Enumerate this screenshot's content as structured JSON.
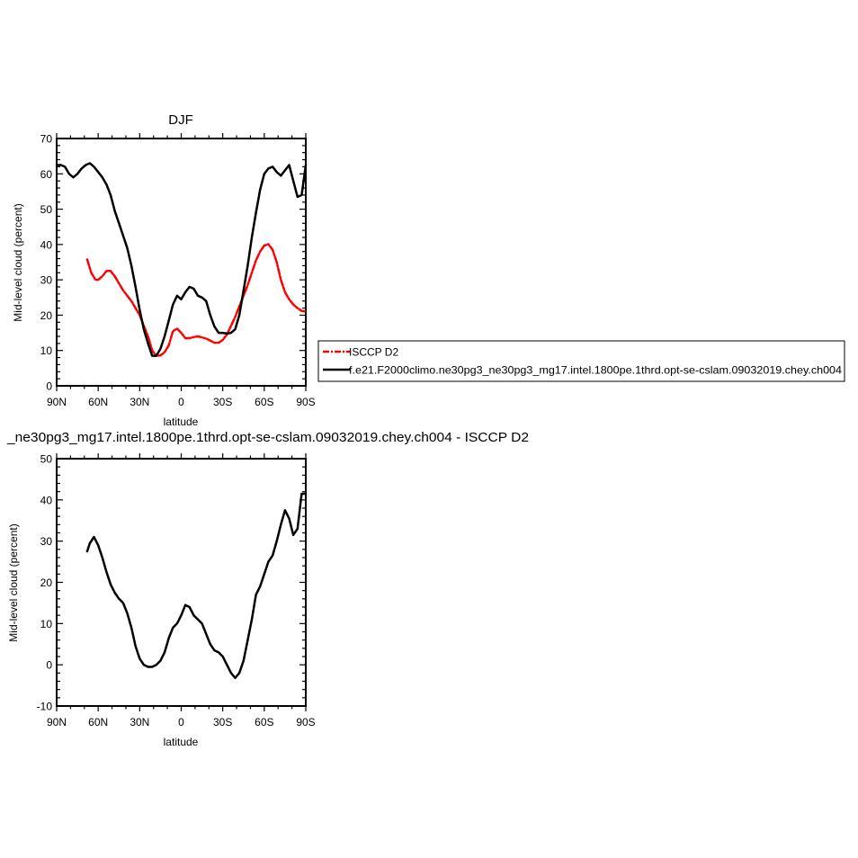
{
  "chart_data": [
    {
      "type": "line",
      "title": "DJF",
      "xlabel": "latitude",
      "ylabel": "Mid-level cloud (percent)",
      "xlim": [
        -90,
        90
      ],
      "ylim": [
        0,
        70
      ],
      "x_ticks": [
        -90,
        -60,
        -30,
        0,
        30,
        60,
        90
      ],
      "x_tick_labels": [
        "90N",
        "60N",
        "30N",
        "0",
        "30S",
        "60S",
        "90S"
      ],
      "y_ticks": [
        0,
        10,
        20,
        30,
        40,
        50,
        60,
        70
      ],
      "y_tick_labels": [
        "0",
        "10",
        "20",
        "30",
        "40",
        "50",
        "60",
        "70"
      ],
      "legend_position": "right, outside plot",
      "series": [
        {
          "name": "ISCCP D2",
          "color": "#ff0000",
          "style": "dashed",
          "x": [
            -68,
            -65,
            -62,
            -60,
            -57,
            -54,
            -51,
            -48,
            -45,
            -42,
            -39,
            -36,
            -33,
            -30,
            -27,
            -24,
            -21,
            -18,
            -15,
            -12,
            -9,
            -6,
            -3,
            0,
            3,
            6,
            9,
            12,
            15,
            18,
            21,
            24,
            27,
            30,
            33,
            36,
            39,
            42,
            45,
            48,
            51,
            54,
            57,
            60,
            63,
            66,
            69,
            72,
            75,
            78,
            81,
            84,
            87,
            90
          ],
          "y": [
            35.8,
            32,
            30,
            30,
            31,
            32.5,
            32.5,
            31,
            29,
            27,
            25.5,
            24,
            22,
            20,
            17,
            14,
            10,
            8.5,
            8.6,
            9.5,
            11.5,
            15.5,
            16.2,
            15,
            13.5,
            13.5,
            13.8,
            14,
            13.7,
            13.4,
            12.8,
            12.2,
            12.2,
            13,
            14.5,
            17,
            19.5,
            22.5,
            25.5,
            28.5,
            32,
            35.5,
            38,
            39.7,
            40.1,
            38.5,
            35,
            30,
            26.5,
            24.5,
            23,
            22,
            21.2,
            21
          ]
        },
        {
          "name": "f.e21.F2000climo.ne30pg3_ne30pg3_mg17.intel.1800pe.1thrd.opt-se-cslam.09032019.chey.ch004",
          "color": "#000000",
          "style": "solid",
          "x": [
            -90,
            -87,
            -84,
            -81,
            -78,
            -75,
            -72,
            -69,
            -66,
            -63,
            -60,
            -57,
            -54,
            -51,
            -48,
            -45,
            -42,
            -39,
            -36,
            -33,
            -30,
            -27,
            -24,
            -21,
            -18,
            -15,
            -12,
            -9,
            -6,
            -3,
            0,
            3,
            6,
            9,
            12,
            15,
            18,
            21,
            24,
            27,
            30,
            33,
            36,
            39,
            42,
            45,
            48,
            51,
            54,
            57,
            60,
            63,
            66,
            69,
            72,
            75,
            78,
            81,
            84,
            87,
            90
          ],
          "y": [
            62.5,
            62.5,
            62,
            60,
            59,
            60,
            61.5,
            62.5,
            63,
            62,
            60.5,
            59,
            57,
            54,
            49.5,
            46,
            42.5,
            39,
            34,
            28,
            21.5,
            16,
            12,
            8.5,
            8.5,
            10.5,
            14,
            18.5,
            23,
            25.5,
            24.5,
            26.5,
            28,
            27.5,
            25.5,
            25,
            24,
            20,
            16.8,
            15,
            15,
            14.8,
            15,
            16,
            20,
            27,
            34,
            42,
            49,
            55.5,
            60,
            61.5,
            62,
            60.5,
            59.5,
            61,
            62.5,
            58,
            53.5,
            54,
            62.5
          ]
        }
      ]
    },
    {
      "type": "line",
      "title": "_ne30pg3_mg17.intel.1800pe.1thrd.opt-se-cslam.09032019.chey.ch004 - ISCCP D2",
      "xlabel": "latitude",
      "ylabel": "Mid-level cloud (percent)",
      "xlim": [
        -90,
        90
      ],
      "ylim": [
        -10,
        50
      ],
      "x_ticks": [
        -90,
        -60,
        -30,
        0,
        30,
        60,
        90
      ],
      "x_tick_labels": [
        "90N",
        "60N",
        "30N",
        "0",
        "30S",
        "60S",
        "90S"
      ],
      "y_ticks": [
        -10,
        0,
        10,
        20,
        30,
        40,
        50
      ],
      "y_tick_labels": [
        "-10",
        "0",
        "10",
        "20",
        "30",
        "40",
        "50"
      ],
      "series": [
        {
          "color": "#000000",
          "style": "solid",
          "x": [
            -68,
            -66,
            -63,
            -60,
            -57,
            -54,
            -51,
            -48,
            -45,
            -42,
            -39,
            -36,
            -33,
            -30,
            -27,
            -24,
            -21,
            -18,
            -15,
            -12,
            -9,
            -6,
            -3,
            0,
            3,
            6,
            9,
            12,
            15,
            18,
            21,
            24,
            27,
            30,
            33,
            36,
            39,
            42,
            45,
            48,
            51,
            54,
            57,
            60,
            63,
            66,
            69,
            72,
            75,
            78,
            81,
            84,
            87,
            90
          ],
          "y": [
            27.5,
            29.5,
            31,
            29,
            26,
            22.5,
            19.5,
            17.5,
            16,
            15,
            12.5,
            9,
            4.5,
            1.5,
            0,
            -0.5,
            -0.5,
            0,
            1,
            3,
            6.5,
            9,
            10,
            12,
            14.5,
            14,
            12,
            11,
            10,
            7.5,
            5,
            3.5,
            3,
            2,
            0,
            -2,
            -3.2,
            -2,
            1,
            6,
            11,
            17,
            19,
            22,
            25,
            26.5,
            30,
            34,
            37.5,
            35.5,
            31.5,
            33,
            41.5,
            41.5
          ]
        }
      ]
    }
  ]
}
